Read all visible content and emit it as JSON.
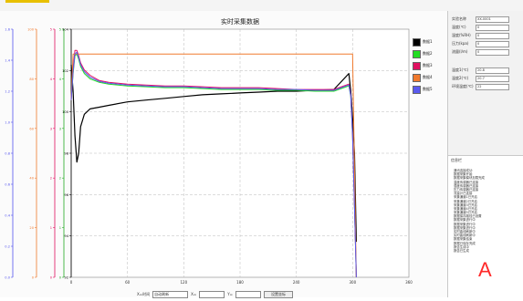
{
  "window": {
    "title": "实时采集数据"
  },
  "chart_data": {
    "type": "line",
    "title": "实时采集数据",
    "x": [
      0,
      2,
      4,
      6,
      8,
      10,
      14,
      20,
      30,
      40,
      60,
      80,
      100,
      120,
      140,
      160,
      180,
      200,
      220,
      240,
      260,
      280,
      296,
      298,
      300,
      302,
      304
    ],
    "xticks": [
      "0",
      "60",
      "120",
      "180",
      "240",
      "300",
      "360"
    ],
    "xlim": [
      0,
      360
    ],
    "series": [
      {
        "name": "数据1",
        "color": "#000000",
        "values": [
          102,
          100.5,
          98,
          96.5,
          97,
          98.5,
          99.2,
          99.5,
          99.6,
          99.7,
          99.9,
          100.0,
          100.1,
          100.2,
          100.3,
          100.35,
          100.4,
          100.45,
          100.5,
          100.5,
          100.55,
          100.6,
          101.5,
          100.5,
          99,
          97,
          92
        ]
      },
      {
        "name": "数据2",
        "color": "#22dd22",
        "values": [
          100,
          101.5,
          102.5,
          102.6,
          102.3,
          101.9,
          101.5,
          101.2,
          101.0,
          100.9,
          100.8,
          100.75,
          100.7,
          100.7,
          100.65,
          100.6,
          100.6,
          100.6,
          100.55,
          100.55,
          100.5,
          100.5,
          100.8,
          100.2,
          98,
          94,
          90
        ]
      },
      {
        "name": "数据3",
        "color": "#e01060",
        "values": [
          100,
          101.8,
          102.8,
          102.8,
          102.5,
          102.1,
          101.7,
          101.4,
          101.1,
          101.0,
          100.9,
          100.85,
          100.8,
          100.8,
          100.75,
          100.7,
          100.7,
          100.7,
          100.65,
          100.6,
          100.6,
          100.6,
          100.9,
          100.3,
          98,
          94,
          90
        ]
      },
      {
        "name": "数据4",
        "color": "#f07a2e",
        "values": [
          100,
          102.6,
          102.6,
          102.6,
          102.6,
          102.6,
          102.6,
          102.6,
          102.6,
          102.6,
          102.6,
          102.6,
          102.6,
          102.6,
          102.6,
          102.6,
          102.6,
          102.6,
          102.6,
          102.6,
          102.6,
          102.6,
          102.6,
          102.6,
          102.6,
          96,
          90
        ]
      },
      {
        "name": "数据5",
        "color": "#5a5aee",
        "values": [
          100,
          101.6,
          102.6,
          102.7,
          102.4,
          102.0,
          101.6,
          101.3,
          101.05,
          100.95,
          100.85,
          100.8,
          100.75,
          100.75,
          100.7,
          100.65,
          100.65,
          100.65,
          100.6,
          100.6,
          100.55,
          100.55,
          100.85,
          100.25,
          98,
          94,
          90
        ]
      }
    ],
    "ylim": [
      90,
      104
    ],
    "axes": [
      {
        "color": "#5555ee",
        "ticks": [
          "1.6",
          "1.4",
          "1.2",
          "1.0",
          "0.8",
          "0.6",
          "0.4",
          "0.2",
          "0.0"
        ]
      },
      {
        "color": "#f07a2e",
        "ticks": [
          "100",
          "80",
          "60",
          "40",
          "20",
          "0"
        ]
      },
      {
        "color": "#e01060",
        "ticks": [
          "5",
          "4",
          "3",
          "2",
          "1",
          "0"
        ]
      },
      {
        "color": "#22aa22",
        "ticks": [
          "5",
          "4",
          "3",
          "2",
          "1",
          "0"
        ]
      },
      {
        "color": "#000000",
        "ticks": [
          "104",
          "102",
          "100",
          "98",
          "96",
          "94",
          "92"
        ]
      }
    ],
    "grid": true,
    "legend_position": "right"
  },
  "bottom_bar": {
    "select_label": "X=时间",
    "select_value": "自动刷新",
    "x_label": "X=",
    "y_label": "Y=",
    "button_label": "设置坐标"
  },
  "right_panel": {
    "fields": [
      {
        "label": "实验名称",
        "value": "XX-0001"
      },
      {
        "label": "温度(℃)",
        "value": "0"
      },
      {
        "label": "湿度(%RH)",
        "value": "0"
      },
      {
        "label": "压力(kpa)",
        "value": "0"
      },
      {
        "label": "流量(l/m)",
        "value": "0"
      }
    ],
    "fields2": [
      {
        "label": "温度1(℃)",
        "value": "20.8"
      },
      {
        "label": "温度2(℃)",
        "value": "20.7"
      },
      {
        "label": "环境温度(℃)",
        "value": "22"
      }
    ]
  },
  "log": {
    "title": "信息栏",
    "lines": [
      "通讯连接成功",
      "数据采集开始",
      "数据采集模块加载完成",
      "温度传感器已连接",
      "湿度传感器已连接",
      "压力传感器已连接",
      "流量计已连接",
      "采集通道1已开启",
      "采集通道2已开启",
      "采集通道3已开启",
      "采集通道4已开启",
      "采集通道5已开启",
      "数据保存路径已设置",
      "数据采集进行中",
      "数据采集进行中",
      "数据采集进行中",
      "实时曲线刷新中",
      "实时曲线刷新中",
      "数据采集结束",
      "数据已保存完成",
      "报告生成中",
      "报告已生成"
    ]
  },
  "annotation_label": "A"
}
